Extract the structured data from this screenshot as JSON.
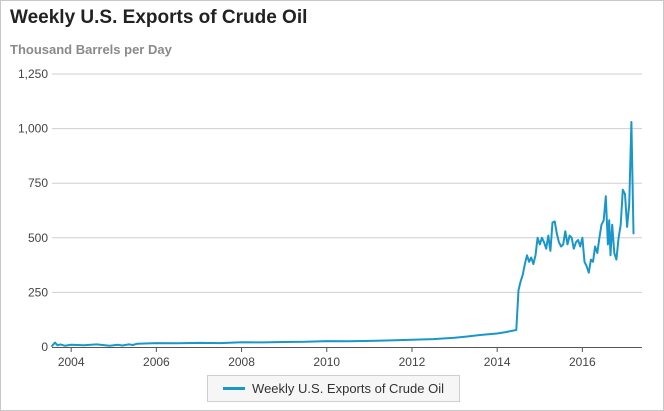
{
  "chart_data": {
    "type": "line",
    "title": "Weekly U.S. Exports of Crude Oil",
    "subtitle": "Thousand Barrels per Day",
    "xlabel": "",
    "ylabel": "",
    "xlim": [
      2003.55,
      2017.4
    ],
    "ylim": [
      0,
      1250
    ],
    "y_ticks": [
      0,
      250,
      500,
      750,
      1000,
      1250
    ],
    "y_tick_labels": [
      "0",
      "250",
      "500",
      "750",
      "1,000",
      "1,250"
    ],
    "x_ticks": [
      2004,
      2006,
      2008,
      2010,
      2012,
      2014,
      2016
    ],
    "x_tick_labels": [
      "2004",
      "2006",
      "2008",
      "2010",
      "2012",
      "2014",
      "2016"
    ],
    "grid": true,
    "legend_position": "bottom-center",
    "color": "#1a97c9",
    "series": [
      {
        "name": "Weekly U.S. Exports of Crude Oil",
        "x": [
          2003.55,
          2003.62,
          2003.68,
          2003.75,
          2003.85,
          2004.0,
          2004.3,
          2004.6,
          2004.9,
          2005.1,
          2005.2,
          2005.35,
          2005.45,
          2005.55,
          2006.0,
          2006.5,
          2007.0,
          2007.5,
          2008.0,
          2008.5,
          2009.0,
          2009.5,
          2010.0,
          2010.5,
          2011.0,
          2011.5,
          2012.0,
          2012.5,
          2013.0,
          2013.3,
          2013.6,
          2013.8,
          2014.0,
          2014.2,
          2014.45,
          2014.5,
          2014.55,
          2014.6,
          2014.65,
          2014.7,
          2014.75,
          2014.8,
          2014.85,
          2014.9,
          2014.95,
          2015.0,
          2015.05,
          2015.1,
          2015.15,
          2015.2,
          2015.25,
          2015.3,
          2015.35,
          2015.4,
          2015.45,
          2015.5,
          2015.55,
          2015.6,
          2015.65,
          2015.7,
          2015.75,
          2015.8,
          2015.85,
          2015.9,
          2015.95,
          2016.0,
          2016.05,
          2016.1,
          2016.15,
          2016.2,
          2016.25,
          2016.3,
          2016.35,
          2016.4,
          2016.45,
          2016.5,
          2016.55,
          2016.6,
          2016.63,
          2016.66,
          2016.7,
          2016.75,
          2016.8,
          2016.85,
          2016.9,
          2016.95,
          2017.0,
          2017.05,
          2017.1,
          2017.15,
          2017.2
        ],
        "y": [
          5,
          20,
          8,
          12,
          6,
          10,
          8,
          12,
          6,
          10,
          7,
          12,
          9,
          15,
          18,
          17,
          19,
          18,
          22,
          21,
          23,
          24,
          27,
          26,
          28,
          30,
          33,
          36,
          42,
          48,
          55,
          58,
          62,
          68,
          78,
          260,
          300,
          330,
          380,
          420,
          390,
          410,
          380,
          420,
          500,
          470,
          500,
          480,
          450,
          510,
          440,
          570,
          575,
          520,
          480,
          460,
          470,
          530,
          470,
          510,
          500,
          450,
          480,
          490,
          460,
          500,
          390,
          370,
          340,
          400,
          390,
          460,
          430,
          500,
          560,
          580,
          690,
          470,
          580,
          420,
          560,
          430,
          400,
          500,
          560,
          720,
          700,
          550,
          650,
          1030,
          520
        ]
      }
    ]
  }
}
